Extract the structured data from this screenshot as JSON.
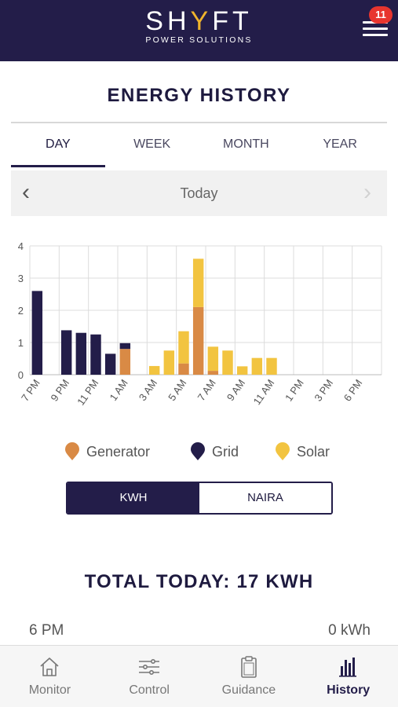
{
  "header": {
    "logo_pre": "SH",
    "logo_y": "Y",
    "logo_post": "FT",
    "logo_sub": "POWER SOLUTIONS",
    "notification_count": "11",
    "icon": "hamburger-menu-icon"
  },
  "page": {
    "title": "ENERGY HISTORY"
  },
  "tabs": [
    {
      "label": "DAY",
      "active": true
    },
    {
      "label": "WEEK",
      "active": false
    },
    {
      "label": "MONTH",
      "active": false
    },
    {
      "label": "YEAR",
      "active": false
    }
  ],
  "day_nav": {
    "label": "Today",
    "prev_icon": "chevron-left-icon",
    "next_icon": "chevron-right-icon"
  },
  "chart_data": {
    "type": "bar",
    "stacked": true,
    "ylim": [
      0,
      4
    ],
    "yticks": [
      "0",
      "1",
      "2",
      "3",
      "4"
    ],
    "grid": true,
    "tick_labels": [
      "7 PM",
      "9 PM",
      "11 PM",
      "1 AM",
      "3 AM",
      "5 AM",
      "7 AM",
      "9 AM",
      "11 AM",
      "1 PM",
      "3 PM",
      "6 PM"
    ],
    "series": [
      {
        "name": "Generator",
        "color": "#d98a45",
        "values": [
          0,
          0,
          0,
          0,
          0,
          0,
          0.8,
          0,
          0,
          0,
          0.35,
          2.1,
          0.12,
          0,
          0,
          0,
          0,
          0,
          0,
          0,
          0,
          0,
          0,
          0
        ]
      },
      {
        "name": "Grid",
        "color": "#231d49",
        "values": [
          2.6,
          0,
          1.38,
          1.3,
          1.25,
          0.65,
          0.18,
          0,
          0,
          0,
          0,
          0,
          0,
          0,
          0,
          0,
          0,
          0,
          0,
          0,
          0,
          0,
          0,
          0
        ]
      },
      {
        "name": "Solar",
        "color": "#f2c440",
        "values": [
          0,
          0,
          0,
          0,
          0,
          0,
          0,
          0,
          0.27,
          0.75,
          1.0,
          1.5,
          0.75,
          0.75,
          0.26,
          0.52,
          0.52,
          0,
          0,
          0,
          0,
          0,
          0,
          0
        ]
      }
    ]
  },
  "legend": [
    {
      "label": "Generator",
      "color": "#d98a45"
    },
    {
      "label": "Grid",
      "color": "#231d49"
    },
    {
      "label": "Solar",
      "color": "#f2c440"
    }
  ],
  "unit_toggle": {
    "kwh": "KWH",
    "naira": "NAIRA",
    "selected": "KWH"
  },
  "total": {
    "label": "TOTAL TODAY: 17 KWH"
  },
  "first_row": {
    "time": "6 PM",
    "value": "0 kWh"
  },
  "nav": [
    {
      "label": "Monitor",
      "icon": "home-icon",
      "active": false
    },
    {
      "label": "Control",
      "icon": "sliders-icon",
      "active": false
    },
    {
      "label": "Guidance",
      "icon": "clipboard-icon",
      "active": false
    },
    {
      "label": "History",
      "icon": "bar-chart-icon",
      "active": true
    }
  ],
  "colors": {
    "brand": "#231d49",
    "accent": "#f0b42c",
    "badge": "#e8352e"
  }
}
